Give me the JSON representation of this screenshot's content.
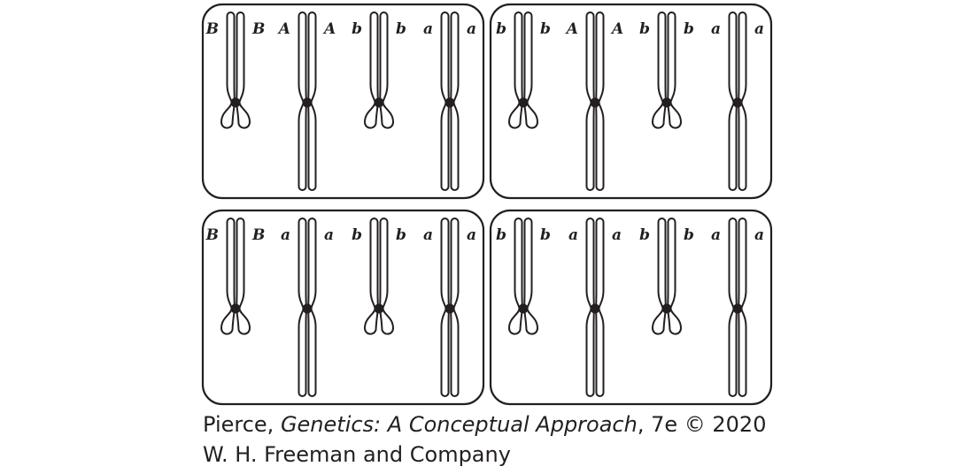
{
  "cells": [
    {
      "pairs": [
        {
          "type": "short",
          "left": "B",
          "right": "B"
        },
        {
          "type": "long",
          "left": "A",
          "right": "A"
        },
        {
          "type": "short",
          "left": "b",
          "right": "b"
        },
        {
          "type": "long",
          "left": "a",
          "right": "a"
        }
      ]
    },
    {
      "pairs": [
        {
          "type": "short",
          "left": "b",
          "right": "b"
        },
        {
          "type": "long",
          "left": "A",
          "right": "A"
        },
        {
          "type": "short",
          "left": "b",
          "right": "b"
        },
        {
          "type": "long",
          "left": "a",
          "right": "a"
        }
      ]
    },
    {
      "pairs": [
        {
          "type": "short",
          "left": "B",
          "right": "B"
        },
        {
          "type": "long",
          "left": "a",
          "right": "a"
        },
        {
          "type": "short",
          "left": "b",
          "right": "b"
        },
        {
          "type": "long",
          "left": "a",
          "right": "a"
        }
      ]
    },
    {
      "pairs": [
        {
          "type": "short",
          "left": "b",
          "right": "b"
        },
        {
          "type": "long",
          "left": "a",
          "right": "a"
        },
        {
          "type": "short",
          "left": "b",
          "right": "b"
        },
        {
          "type": "long",
          "left": "a",
          "right": "a"
        }
      ]
    }
  ],
  "credit": {
    "author": "Pierce, ",
    "book_title": "Genetics: A Conceptual Approach",
    "edition": ", 7e © 2020",
    "publisher": "W. H. Freeman and Company"
  }
}
